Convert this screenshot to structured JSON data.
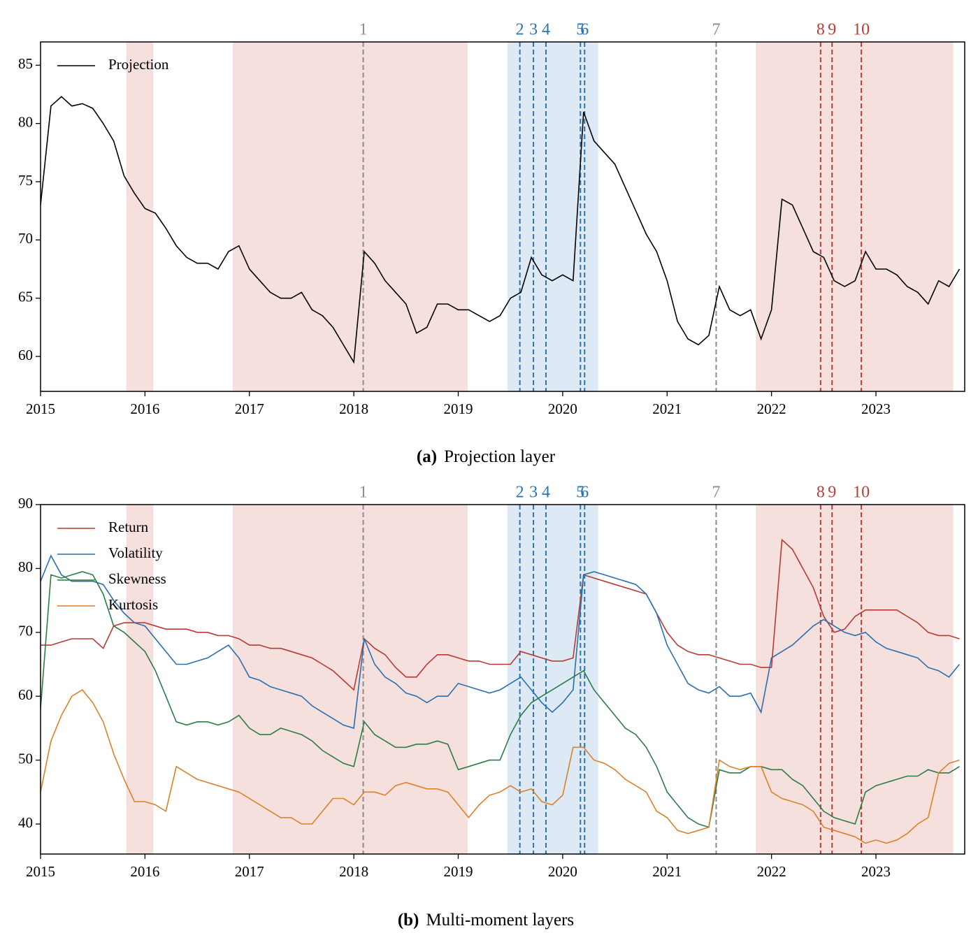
{
  "chart_data": [
    {
      "type": "line",
      "caption_label": "(a)",
      "caption": "Projection layer",
      "legend": "upper left",
      "xlim": [
        2015,
        2023.85
      ],
      "xticks": [
        2015,
        2016,
        2017,
        2018,
        2019,
        2020,
        2021,
        2022,
        2023
      ],
      "ylim": [
        57,
        87
      ],
      "yticks": [
        60,
        65,
        70,
        75,
        80,
        85
      ],
      "regions": [
        {
          "x": [
            2015.82,
            2016.08
          ],
          "color": "#f5e0dd"
        },
        {
          "x": [
            2016.84,
            2019.09
          ],
          "color": "#f5e0dd"
        },
        {
          "x": [
            2019.47,
            2020.34
          ],
          "color": "#dde9f4"
        },
        {
          "x": [
            2021.85,
            2023.74
          ],
          "color": "#f5e0dd"
        }
      ],
      "events": [
        {
          "label": "1",
          "x": 2018.09,
          "color": "#8c8c8c"
        },
        {
          "label": "2",
          "x": 2019.59,
          "color": "#2e75b0"
        },
        {
          "label": "3",
          "x": 2019.72,
          "color": "#2e75b0"
        },
        {
          "label": "4",
          "x": 2019.84,
          "color": "#2e75b0"
        },
        {
          "label": "5",
          "x": 2020.17,
          "color": "#2e75b0"
        },
        {
          "label": "6",
          "x": 2020.21,
          "color": "#2e75b0"
        },
        {
          "label": "7",
          "x": 2021.47,
          "color": "#8c8c8c"
        },
        {
          "label": "8",
          "x": 2022.47,
          "color": "#b5403a"
        },
        {
          "label": "9",
          "x": 2022.58,
          "color": "#b5403a"
        },
        {
          "label": "10",
          "x": 2022.86,
          "color": "#b5403a"
        }
      ],
      "x": [
        2015.0,
        2015.1,
        2015.2,
        2015.3,
        2015.4,
        2015.5,
        2015.6,
        2015.7,
        2015.8,
        2015.9,
        2016.0,
        2016.1,
        2016.2,
        2016.3,
        2016.4,
        2016.5,
        2016.6,
        2016.7,
        2016.8,
        2016.9,
        2017.0,
        2017.1,
        2017.2,
        2017.3,
        2017.4,
        2017.5,
        2017.6,
        2017.7,
        2017.8,
        2017.9,
        2018.0,
        2018.1,
        2018.2,
        2018.3,
        2018.4,
        2018.5,
        2018.6,
        2018.7,
        2018.8,
        2018.9,
        2019.0,
        2019.1,
        2019.2,
        2019.3,
        2019.4,
        2019.5,
        2019.6,
        2019.7,
        2019.8,
        2019.9,
        2020.0,
        2020.1,
        2020.2,
        2020.3,
        2020.4,
        2020.5,
        2020.6,
        2020.7,
        2020.8,
        2020.9,
        2021.0,
        2021.1,
        2021.2,
        2021.3,
        2021.4,
        2021.5,
        2021.6,
        2021.7,
        2021.8,
        2021.9,
        2022.0,
        2022.1,
        2022.2,
        2022.3,
        2022.4,
        2022.5,
        2022.6,
        2022.7,
        2022.8,
        2022.9,
        2023.0,
        2023.1,
        2023.2,
        2023.3,
        2023.4,
        2023.5,
        2023.6,
        2023.7,
        2023.8
      ],
      "series": [
        {
          "name": "Projection",
          "color": "#000000",
          "values": [
            73,
            81.5,
            82.3,
            81.5,
            81.7,
            81.3,
            80,
            78.5,
            75.5,
            74,
            72.7,
            72.3,
            71,
            69.5,
            68.5,
            68,
            68,
            67.5,
            69,
            69.5,
            67.5,
            66.5,
            65.5,
            65,
            65,
            65.5,
            64,
            63.5,
            62.5,
            61,
            59.5,
            69,
            68,
            66.5,
            65.5,
            64.5,
            62,
            62.5,
            64.5,
            64.5,
            64,
            64,
            63.5,
            63,
            63.5,
            65,
            65.5,
            68.5,
            67,
            66.5,
            67,
            66.5,
            81,
            78.5,
            77.5,
            76.5,
            74.5,
            72.5,
            70.5,
            69,
            66.5,
            63,
            61.5,
            61,
            61.8,
            66,
            64,
            63.5,
            64,
            61.5,
            64,
            73.5,
            73,
            71,
            69,
            68.5,
            66.5,
            66,
            66.5,
            69,
            67.5,
            67.5,
            67,
            66,
            65.5,
            64.5,
            66.5,
            66,
            67.5
          ]
        }
      ]
    },
    {
      "type": "line",
      "caption_label": "(b)",
      "caption": "Multi-moment layers",
      "legend": "upper left",
      "xlim": [
        2015,
        2023.85
      ],
      "xticks": [
        2015,
        2016,
        2017,
        2018,
        2019,
        2020,
        2021,
        2022,
        2023
      ],
      "ylim": [
        35.3,
        90
      ],
      "yticks": [
        40,
        50,
        60,
        70,
        80,
        90
      ],
      "regions": [
        {
          "x": [
            2015.82,
            2016.08
          ],
          "color": "#f5e0dd"
        },
        {
          "x": [
            2016.84,
            2019.09
          ],
          "color": "#f5e0dd"
        },
        {
          "x": [
            2019.47,
            2020.34
          ],
          "color": "#dde9f4"
        },
        {
          "x": [
            2021.85,
            2023.74
          ],
          "color": "#f5e0dd"
        }
      ],
      "events": [
        {
          "label": "1",
          "x": 2018.09,
          "color": "#8c8c8c"
        },
        {
          "label": "2",
          "x": 2019.59,
          "color": "#2e75b0"
        },
        {
          "label": "3",
          "x": 2019.72,
          "color": "#2e75b0"
        },
        {
          "label": "4",
          "x": 2019.84,
          "color": "#2e75b0"
        },
        {
          "label": "5",
          "x": 2020.17,
          "color": "#2e75b0"
        },
        {
          "label": "6",
          "x": 2020.21,
          "color": "#2e75b0"
        },
        {
          "label": "7",
          "x": 2021.47,
          "color": "#8c8c8c"
        },
        {
          "label": "8",
          "x": 2022.47,
          "color": "#b5403a"
        },
        {
          "label": "9",
          "x": 2022.58,
          "color": "#b5403a"
        },
        {
          "label": "10",
          "x": 2022.86,
          "color": "#b5403a"
        }
      ],
      "x": [
        2015.0,
        2015.1,
        2015.2,
        2015.3,
        2015.4,
        2015.5,
        2015.6,
        2015.7,
        2015.8,
        2015.9,
        2016.0,
        2016.1,
        2016.2,
        2016.3,
        2016.4,
        2016.5,
        2016.6,
        2016.7,
        2016.8,
        2016.9,
        2017.0,
        2017.1,
        2017.2,
        2017.3,
        2017.4,
        2017.5,
        2017.6,
        2017.7,
        2017.8,
        2017.9,
        2018.0,
        2018.1,
        2018.2,
        2018.3,
        2018.4,
        2018.5,
        2018.6,
        2018.7,
        2018.8,
        2018.9,
        2019.0,
        2019.1,
        2019.2,
        2019.3,
        2019.4,
        2019.5,
        2019.6,
        2019.7,
        2019.8,
        2019.9,
        2020.0,
        2020.1,
        2020.2,
        2020.3,
        2020.4,
        2020.5,
        2020.6,
        2020.7,
        2020.8,
        2020.9,
        2021.0,
        2021.1,
        2021.2,
        2021.3,
        2021.4,
        2021.5,
        2021.6,
        2021.7,
        2021.8,
        2021.9,
        2022.0,
        2022.1,
        2022.2,
        2022.3,
        2022.4,
        2022.5,
        2022.6,
        2022.7,
        2022.8,
        2022.9,
        2023.0,
        2023.1,
        2023.2,
        2023.3,
        2023.4,
        2023.5,
        2023.6,
        2023.7,
        2023.8
      ],
      "series": [
        {
          "name": "Return",
          "color": "#b83a32",
          "values": [
            68,
            68,
            68.5,
            69,
            69,
            69,
            67.5,
            71,
            71.5,
            71.5,
            71.5,
            71,
            70.5,
            70.5,
            70.5,
            70,
            70,
            69.5,
            69.5,
            69,
            68,
            68,
            67.5,
            67.5,
            67,
            66.5,
            66,
            65,
            64,
            62.5,
            61,
            69,
            67.5,
            66.5,
            64.5,
            63,
            63,
            65,
            66.5,
            66.5,
            66,
            65.5,
            65.5,
            65,
            65,
            65,
            67,
            66.5,
            66,
            65.5,
            65.5,
            66,
            79,
            78.5,
            78,
            77.5,
            77,
            76.5,
            76,
            73,
            70,
            68,
            67,
            66.5,
            66.5,
            66,
            65.5,
            65,
            65,
            64.5,
            64.5,
            84.5,
            83,
            80,
            77,
            72.5,
            70,
            70.5,
            72.5,
            73.5,
            73.5,
            73.5,
            73.5,
            72.5,
            71.5,
            70,
            69.5,
            69.5,
            69
          ]
        },
        {
          "name": "Volatility",
          "color": "#2a6fb0",
          "values": [
            78,
            82,
            79,
            78,
            78,
            78,
            77.5,
            75,
            73,
            71.5,
            71,
            69,
            67,
            65,
            65,
            65.5,
            66,
            67,
            68,
            66,
            63,
            62.5,
            61.5,
            61,
            60.5,
            60,
            58.5,
            57.5,
            56.5,
            55.5,
            55,
            69,
            65,
            63,
            62,
            60.5,
            60,
            59,
            60,
            60,
            62,
            61.5,
            61,
            60.5,
            61,
            62,
            63,
            61,
            59,
            57.5,
            59,
            61,
            79,
            79.5,
            79,
            78.5,
            78,
            77.5,
            76,
            73,
            68,
            65,
            62,
            61,
            60.5,
            61.5,
            60,
            60,
            60.5,
            57.5,
            66,
            67,
            68,
            69.5,
            71,
            72,
            71,
            70,
            69.5,
            70,
            68.5,
            67.5,
            67,
            66.5,
            66,
            64.5,
            64,
            63,
            65
          ]
        },
        {
          "name": "Skewness",
          "color": "#2b7d44",
          "values": [
            58,
            79,
            78.5,
            79,
            79.5,
            79,
            76,
            71,
            70,
            68.5,
            67,
            64,
            60,
            56,
            55.5,
            56,
            56,
            55.5,
            56,
            57,
            55,
            54,
            54,
            55,
            54.5,
            54,
            53,
            51.5,
            50.5,
            49.5,
            49,
            56,
            54,
            53,
            52,
            52,
            52.5,
            52.5,
            53,
            52.5,
            48.5,
            49,
            49.5,
            50,
            50,
            54,
            57,
            59,
            60,
            61,
            62,
            63,
            64,
            61,
            59,
            57,
            55,
            54,
            52,
            49,
            45,
            43,
            41,
            40,
            39.5,
            48.5,
            48,
            48,
            49,
            49,
            48.5,
            48.5,
            47,
            46,
            44,
            42,
            41,
            40.5,
            40,
            45,
            46,
            46.5,
            47,
            47.5,
            47.5,
            48.5,
            48,
            48,
            49
          ]
        },
        {
          "name": "Kurtosis",
          "color": "#d9822b",
          "values": [
            45,
            53,
            57,
            60,
            61,
            59,
            56,
            51,
            47,
            43.5,
            43.5,
            43,
            42,
            49,
            48,
            47,
            46.5,
            46,
            45.5,
            45,
            44,
            43,
            42,
            41,
            41,
            40,
            40,
            42,
            44,
            44,
            43,
            45,
            45,
            44.5,
            46,
            46.5,
            46,
            45.5,
            45.5,
            45,
            43,
            41,
            43,
            44.5,
            45,
            46,
            45,
            45.5,
            43.5,
            43,
            44.5,
            52,
            52,
            50,
            49.5,
            48.5,
            47,
            46,
            45,
            42,
            41,
            39,
            38.5,
            39,
            39.5,
            50,
            49,
            48.5,
            49,
            49,
            45,
            44,
            43.5,
            43,
            42,
            39.5,
            39,
            38.5,
            38,
            37,
            37.5,
            37,
            37.5,
            38.5,
            40,
            41,
            48,
            49.5,
            50
          ]
        }
      ]
    }
  ]
}
